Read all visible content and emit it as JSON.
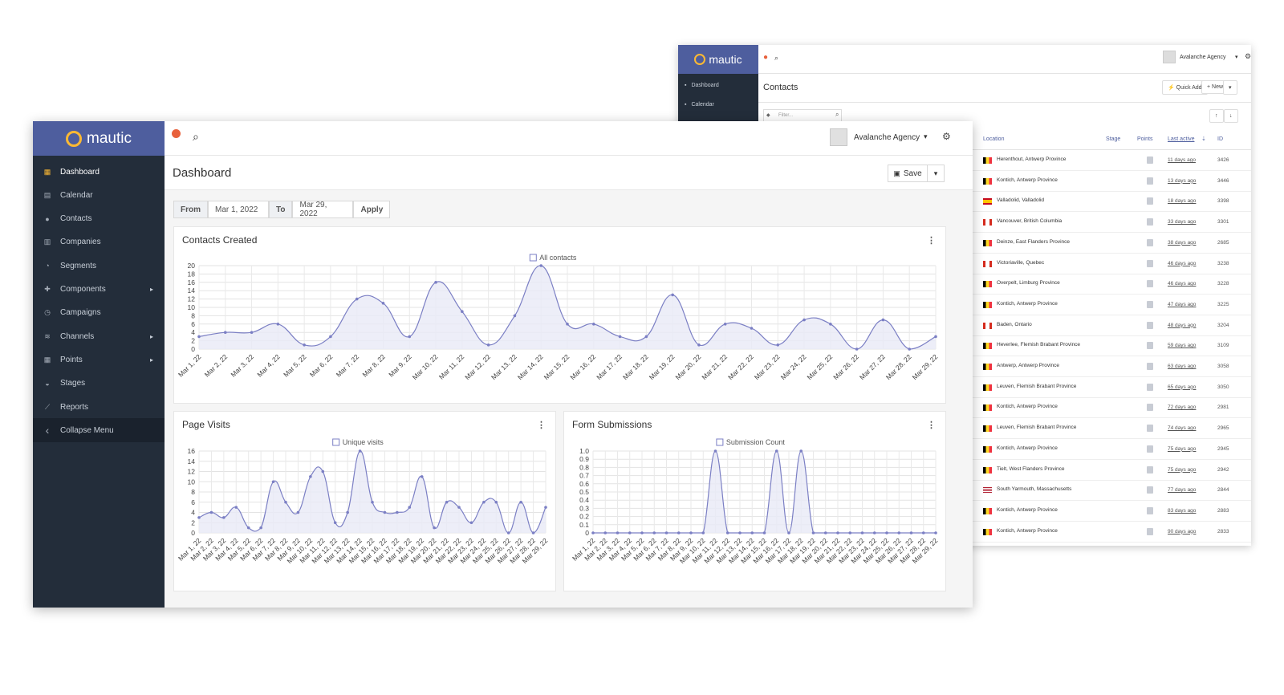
{
  "colors": {
    "brand": "#4e5e9e",
    "sidebar": "#232d3a",
    "accent": "#fdb933",
    "series": "#7b7fc4",
    "fill": "#e9eaf6"
  },
  "back": {
    "logo": "mautic",
    "nav": [
      "Dashboard",
      "Calendar"
    ],
    "user": "Avalanche Agency",
    "title": "Contacts",
    "quick_add": "Quick Add",
    "new": "New",
    "filter_placeholder": "Filter...",
    "headers": {
      "location": "Location",
      "stage": "Stage",
      "points": "Points",
      "last_active": "Last active",
      "id": "ID"
    },
    "rows": [
      {
        "flag": "be",
        "location": "Herenthout, Antwerp Province",
        "ago": "11 days ago",
        "id": "3426"
      },
      {
        "flag": "be",
        "location": "Kontich, Antwerp Province",
        "ago": "13 days ago",
        "id": "3446"
      },
      {
        "flag": "es",
        "location": "Valladolid, Valladolid",
        "ago": "18 days ago",
        "id": "3398"
      },
      {
        "flag": "ca",
        "location": "Vancouver, British Columbia",
        "ago": "33 days ago",
        "id": "3301"
      },
      {
        "flag": "be",
        "location": "Deinze, East Flanders Province",
        "ago": "38 days ago",
        "id": "2685"
      },
      {
        "flag": "ca",
        "location": "Victoriaville, Quebec",
        "ago": "46 days ago",
        "id": "3238"
      },
      {
        "flag": "be",
        "location": "Overpelt, Limburg Province",
        "ago": "46 days ago",
        "id": "3228"
      },
      {
        "flag": "be",
        "location": "Kontich, Antwerp Province",
        "ago": "47 days ago",
        "id": "3225"
      },
      {
        "flag": "ca",
        "location": "Baden, Ontario",
        "ago": "48 days ago",
        "id": "3204"
      },
      {
        "flag": "be",
        "location": "Heverlee, Flemish Brabant Province",
        "ago": "59 days ago",
        "id": "3109"
      },
      {
        "flag": "be",
        "location": "Antwerp, Antwerp Province",
        "ago": "63 days ago",
        "id": "3058"
      },
      {
        "flag": "be",
        "location": "Leuven, Flemish Brabant Province",
        "ago": "65 days ago",
        "id": "3050"
      },
      {
        "flag": "be",
        "location": "Kontich, Antwerp Province",
        "ago": "72 days ago",
        "id": "2981"
      },
      {
        "flag": "be",
        "location": "Leuven, Flemish Brabant Province",
        "ago": "74 days ago",
        "id": "2965"
      },
      {
        "flag": "be",
        "location": "Kontich, Antwerp Province",
        "ago": "75 days ago",
        "id": "2945"
      },
      {
        "flag": "be",
        "location": "Tielt, West Flanders Province",
        "ago": "75 days ago",
        "id": "2942"
      },
      {
        "flag": "us",
        "location": "South Yarmouth, Massachusetts",
        "ago": "77 days ago",
        "id": "2844"
      },
      {
        "flag": "be",
        "location": "Kontich, Antwerp Province",
        "ago": "83 days ago",
        "id": "2883"
      },
      {
        "flag": "be",
        "location": "Kontich, Antwerp Province",
        "ago": "90 days ago",
        "id": "2833"
      }
    ]
  },
  "front": {
    "logo": "mautic",
    "user": "Avalanche Agency",
    "title": "Dashboard",
    "save": "Save",
    "nav": [
      {
        "label": "Dashboard",
        "icon": "grid-icon",
        "active": true
      },
      {
        "label": "Calendar",
        "icon": "calendar-icon"
      },
      {
        "label": "Contacts",
        "icon": "user-icon"
      },
      {
        "label": "Companies",
        "icon": "building-icon"
      },
      {
        "label": "Segments",
        "icon": "pie-icon"
      },
      {
        "label": "Components",
        "icon": "puzzle-icon",
        "caret": true
      },
      {
        "label": "Campaigns",
        "icon": "clock-icon"
      },
      {
        "label": "Channels",
        "icon": "rss-icon",
        "caret": true
      },
      {
        "label": "Points",
        "icon": "calculator-icon",
        "caret": true
      },
      {
        "label": "Stages",
        "icon": "tachometer-icon"
      },
      {
        "label": "Reports",
        "icon": "line-chart-icon"
      },
      {
        "label": "Collapse Menu",
        "icon": "chevron-left-icon",
        "collapse": true
      }
    ],
    "date_from_label": "From",
    "date_from": "Mar 1, 2022",
    "date_to_label": "To",
    "date_to": "Mar 29, 2022",
    "apply": "Apply"
  },
  "chart_data": [
    {
      "type": "area",
      "title": "Contacts Created",
      "legend": "All contacts",
      "ylim": [
        0,
        20
      ],
      "yticks": [
        0,
        2,
        4,
        6,
        8,
        10,
        12,
        14,
        16,
        18,
        20
      ],
      "x": [
        "Mar 1, 22",
        "Mar 2, 22",
        "Mar 3, 22",
        "Mar 4, 22",
        "Mar 5, 22",
        "Mar 6, 22",
        "Mar 7, 22",
        "Mar 8, 22",
        "Mar 9, 22",
        "Mar 10, 22",
        "Mar 11, 22",
        "Mar 12, 22",
        "Mar 13, 22",
        "Mar 14, 22",
        "Mar 15, 22",
        "Mar 16, 22",
        "Mar 17, 22",
        "Mar 18, 22",
        "Mar 19, 22",
        "Mar 20, 22",
        "Mar 21, 22",
        "Mar 22, 22",
        "Mar 23, 22",
        "Mar 24, 22",
        "Mar 25, 22",
        "Mar 26, 22",
        "Mar 27, 22",
        "Mar 28, 22",
        "Mar 29, 22"
      ],
      "values": [
        3,
        4,
        4,
        6,
        1,
        3,
        12,
        11,
        3,
        16,
        9,
        1,
        8,
        20,
        6,
        6,
        3,
        3,
        13,
        1,
        6,
        5,
        1,
        7,
        6,
        0,
        7,
        0,
        3
      ]
    },
    {
      "type": "area",
      "title": "Page Visits",
      "legend": "Unique visits",
      "ylim": [
        0,
        16
      ],
      "yticks": [
        0,
        2,
        4,
        6,
        8,
        10,
        12,
        14,
        16
      ],
      "x": [
        "Mar 1, 22",
        "Mar 2, 22",
        "Mar 3, 22",
        "Mar 4, 22",
        "Mar 5, 22",
        "Mar 6, 22",
        "Mar 7, 22",
        "Mar 8, 22",
        "Mar 9, 22",
        "Mar 10, 22",
        "Mar 11, 22",
        "Mar 12, 22",
        "Mar 13, 22",
        "Mar 14, 22",
        "Mar 15, 22",
        "Mar 16, 22",
        "Mar 17, 22",
        "Mar 18, 22",
        "Mar 19, 22",
        "Mar 20, 22",
        "Mar 21, 22",
        "Mar 22, 22",
        "Mar 23, 22",
        "Mar 24, 22",
        "Mar 25, 22",
        "Mar 26, 22",
        "Mar 27, 22",
        "Mar 28, 22",
        "Mar 29, 22"
      ],
      "values": [
        3,
        4,
        3,
        5,
        1,
        1,
        10,
        6,
        4,
        11,
        12,
        2,
        4,
        16,
        6,
        4,
        4,
        5,
        11,
        1,
        6,
        5,
        2,
        6,
        6,
        0,
        6,
        0,
        5
      ]
    },
    {
      "type": "area",
      "title": "Form Submissions",
      "legend": "Submission Count",
      "ylim": [
        0,
        1
      ],
      "yticks": [
        "0",
        "0.1",
        "0.2",
        "0.3",
        "0.4",
        "0.5",
        "0.6",
        "0.7",
        "0.8",
        "0.9",
        "1.0"
      ],
      "x": [
        "Mar 1, 22",
        "Mar 2, 22",
        "Mar 3, 22",
        "Mar 4, 22",
        "Mar 5, 22",
        "Mar 6, 22",
        "Mar 7, 22",
        "Mar 8, 22",
        "Mar 9, 22",
        "Mar 10, 22",
        "Mar 11, 22",
        "Mar 12, 22",
        "Mar 13, 22",
        "Mar 14, 22",
        "Mar 15, 22",
        "Mar 16, 22",
        "Mar 17, 22",
        "Mar 18, 22",
        "Mar 19, 22",
        "Mar 20, 22",
        "Mar 21, 22",
        "Mar 22, 22",
        "Mar 23, 22",
        "Mar 24, 22",
        "Mar 25, 22",
        "Mar 26, 22",
        "Mar 27, 22",
        "Mar 28, 22",
        "Mar 29, 22"
      ],
      "values": [
        0,
        0,
        0,
        0,
        0,
        0,
        0,
        0,
        0,
        0,
        1,
        0,
        0,
        0,
        0,
        1,
        0,
        1,
        0,
        0,
        0,
        0,
        0,
        0,
        0,
        0,
        0,
        0,
        0
      ]
    }
  ]
}
